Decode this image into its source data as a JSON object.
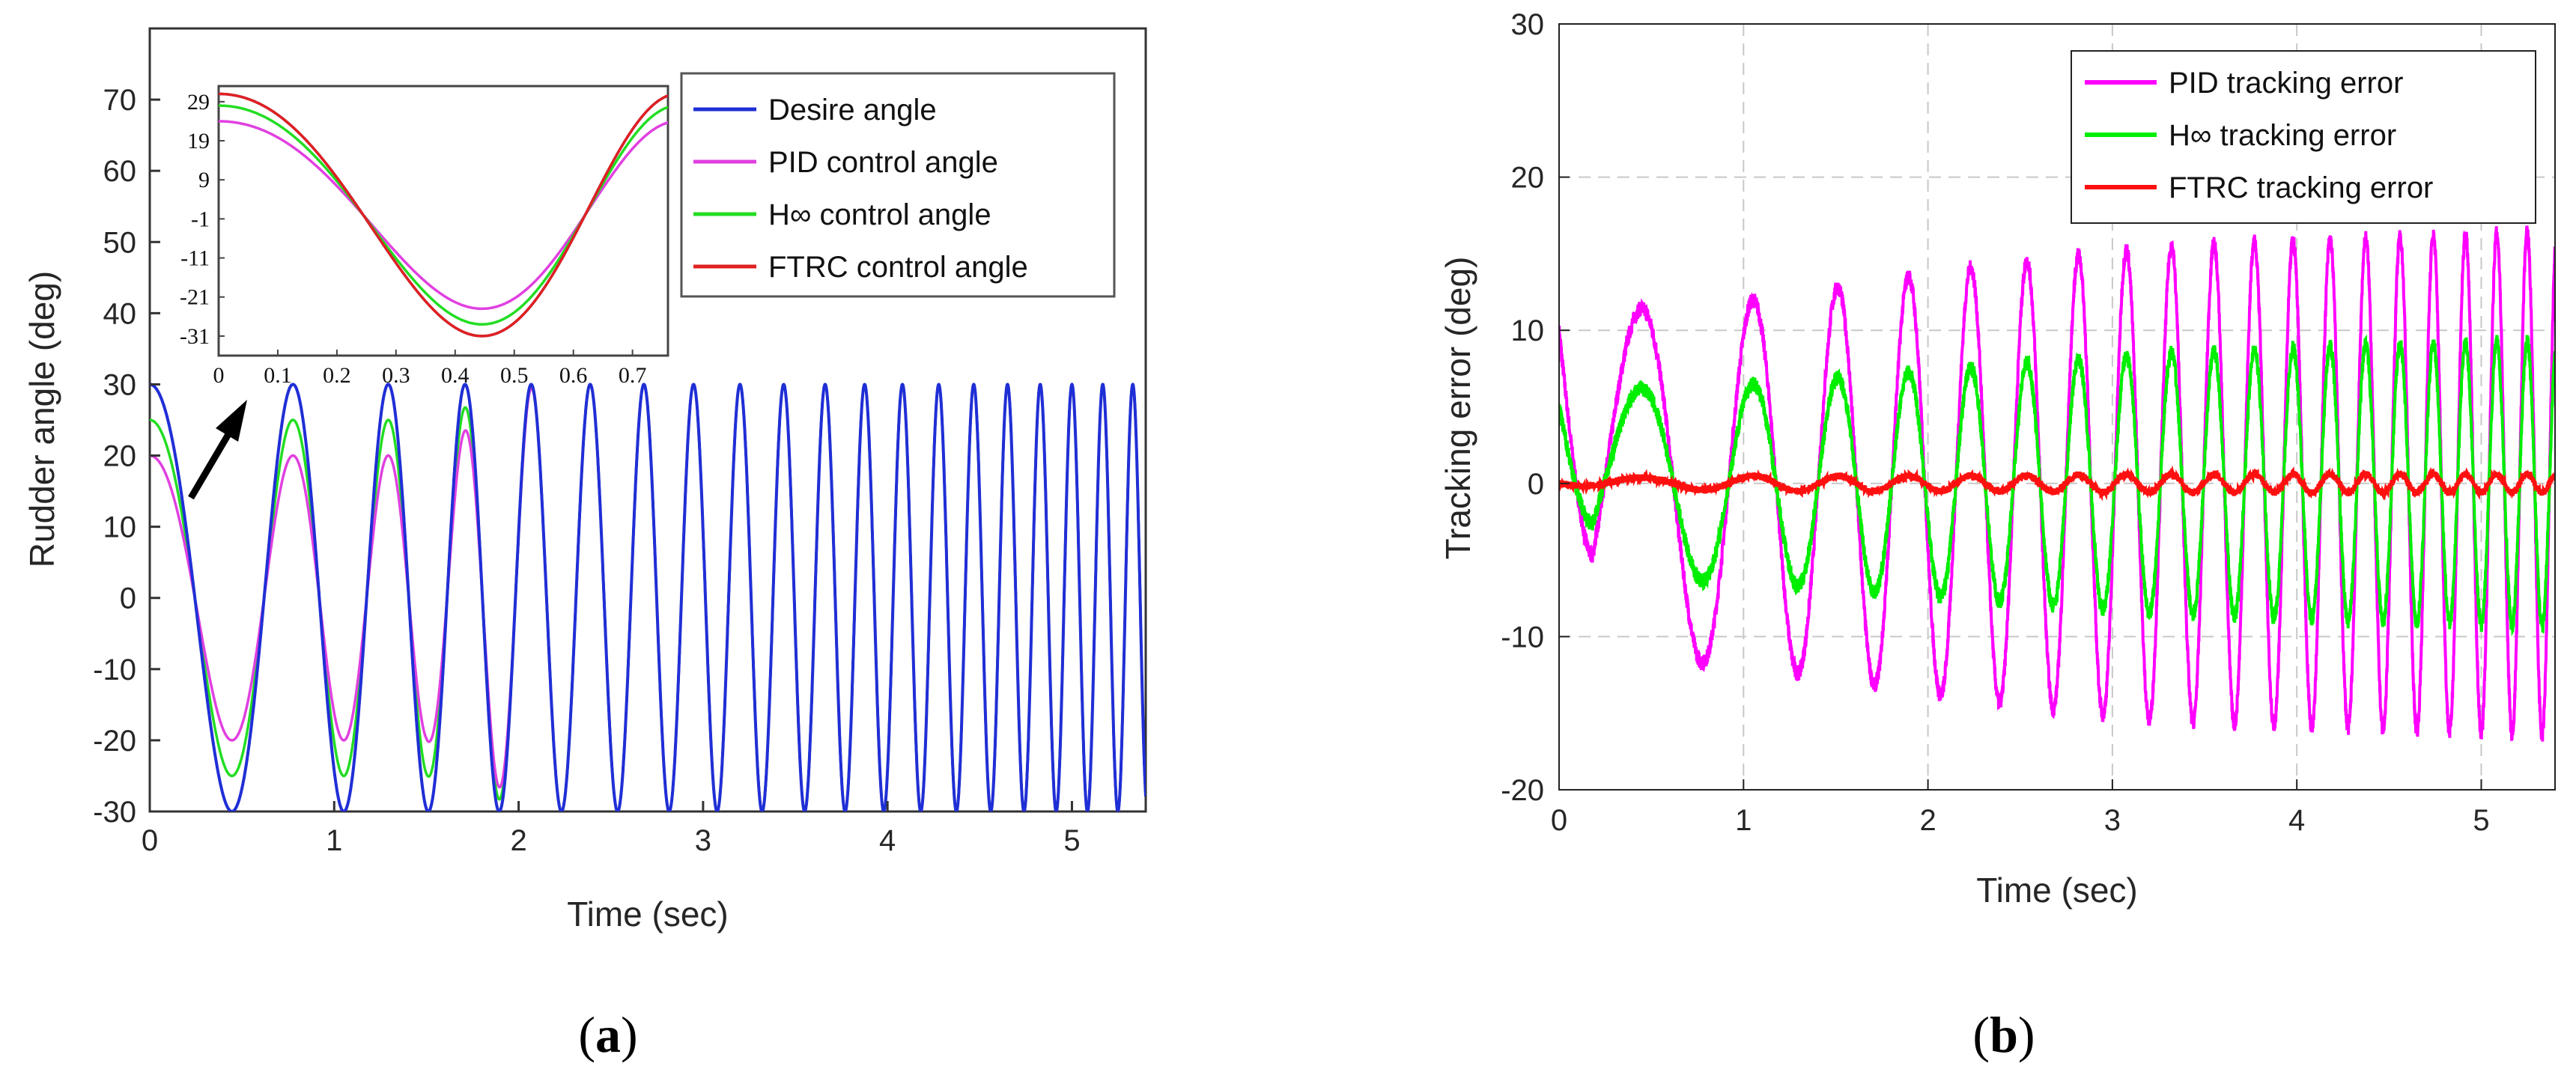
{
  "figure": {
    "caption_a": "a",
    "caption_b": "b"
  },
  "chart_data": [
    {
      "id": "a",
      "type": "line",
      "xlabel": "Time (sec)",
      "ylabel": "Rudder angle (deg)",
      "xlim": [
        0,
        5.4
      ],
      "ylim": [
        -30,
        80
      ],
      "xticks": [
        0,
        1,
        2,
        3,
        4,
        5
      ],
      "yticks": [
        -30,
        -20,
        -10,
        0,
        10,
        20,
        30,
        40,
        50,
        60,
        70
      ],
      "grid": false,
      "legend": "inset top-right",
      "signal": "chirp, phase(t) = 2*pi*(0.9*t + 0.5*t^2)",
      "series": [
        {
          "name": "Desire angle",
          "color": "#1f2fd6",
          "amplitude": 30
        },
        {
          "name": "PID control angle",
          "color": "#e040e0",
          "amplitude": 20,
          "settle_to": 30
        },
        {
          "name": "H∞ control angle",
          "color": "#22dd22",
          "amplitude": 25,
          "settle_to": 30
        },
        {
          "name": "FTRC control angle",
          "color": "#e02020",
          "amplitude": 30
        }
      ],
      "inset": {
        "xlim": [
          0,
          0.76
        ],
        "ylim": [
          -36,
          33
        ],
        "xticks": [
          "0",
          "0.1",
          "0.2",
          "0.3",
          "0.4",
          "0.5",
          "0.6",
          "0.7"
        ],
        "yticks": [
          "29",
          "19",
          "9",
          "-1",
          "-11",
          "-21",
          "-31"
        ],
        "ytick_values": [
          29,
          19,
          9,
          -1,
          -11,
          -21,
          -31
        ],
        "amplitudes": [
          31,
          24,
          28,
          31
        ]
      }
    },
    {
      "id": "b",
      "type": "line",
      "xlabel": "Time (sec)",
      "ylabel": "Tracking error (deg)",
      "xlim": [
        0,
        5.4
      ],
      "ylim": [
        -20,
        30
      ],
      "xticks": [
        0,
        1,
        2,
        3,
        4,
        5
      ],
      "yticks": [
        -20,
        -10,
        0,
        10,
        20,
        30
      ],
      "grid": true,
      "legend": "top-right",
      "series": [
        {
          "name": "PID tracking error",
          "color": "#ff00ff",
          "peak_envelope": [
            11,
            12,
            14,
            15.5,
            16,
            16.5
          ]
        },
        {
          "name": "H∞ tracking error",
          "color": "#00ee00",
          "peak_envelope": [
            6,
            6.5,
            7.5,
            8.5,
            9,
            9.3
          ]
        },
        {
          "name": "FTRC tracking error",
          "color": "#ff1010",
          "peak_envelope": [
            0.3,
            0.5,
            0.5,
            0.6,
            0.6,
            0.6
          ]
        }
      ]
    }
  ]
}
